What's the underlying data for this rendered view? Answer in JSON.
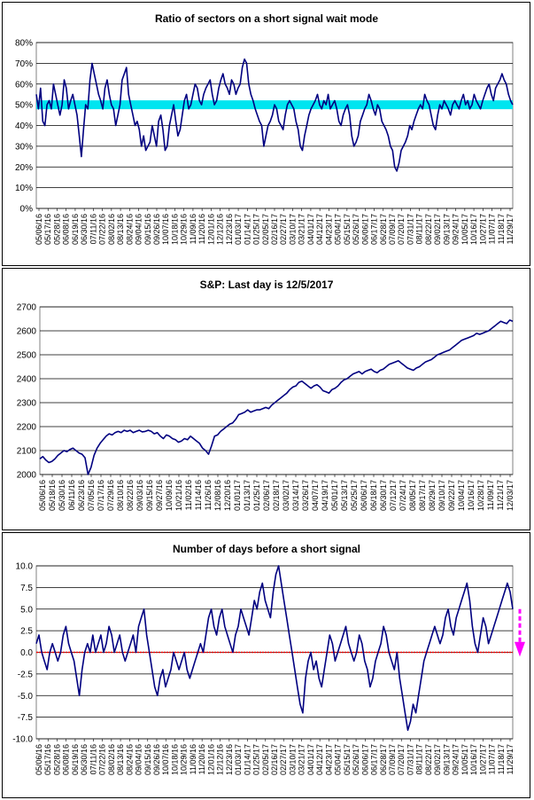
{
  "chart_data": [
    {
      "type": "line",
      "title": "Ratio of sectors on a short signal wait mode",
      "ylim": [
        0,
        80
      ],
      "yticks": [
        "0%",
        "10%",
        "20%",
        "30%",
        "40%",
        "50%",
        "60%",
        "70%",
        "80%"
      ],
      "grid": "horizontal",
      "highlight_band": {
        "center": 50,
        "color": "#00e5f0"
      },
      "line_color": "#000080",
      "xlabels": [
        "05/06/16",
        "05/17/16",
        "05/28/16",
        "06/08/16",
        "06/19/16",
        "06/30/16",
        "07/11/16",
        "07/22/16",
        "08/02/16",
        "08/13/16",
        "08/24/16",
        "09/04/16",
        "09/15/16",
        "09/26/16",
        "10/07/16",
        "10/18/16",
        "10/29/16",
        "11/09/16",
        "11/20/16",
        "12/01/16",
        "12/12/16",
        "12/23/16",
        "01/03/17",
        "01/14/17",
        "01/25/17",
        "02/05/17",
        "02/16/17",
        "02/27/17",
        "03/10/17",
        "03/21/17",
        "04/01/17",
        "04/12/17",
        "04/23/17",
        "05/04/17",
        "05/15/17",
        "05/26/17",
        "06/06/17",
        "06/17/17",
        "06/28/17",
        "07/09/17",
        "07/20/17",
        "07/31/17",
        "08/11/17",
        "08/22/17",
        "09/02/17",
        "09/13/17",
        "09/24/17",
        "10/05/17",
        "10/16/17",
        "10/27/17",
        "11/07/17",
        "11/18/17",
        "11/29/17"
      ],
      "series": [
        {
          "values": [
            55,
            48,
            58,
            42,
            40,
            50,
            52,
            48,
            60,
            55,
            50,
            45,
            50,
            62,
            58,
            48,
            52,
            55,
            50,
            45,
            35,
            25,
            38,
            50,
            48,
            62,
            70,
            65,
            60,
            55,
            52,
            48,
            58,
            62,
            55,
            50,
            48,
            40,
            45,
            50,
            62,
            65,
            68,
            55,
            50,
            45,
            40,
            42,
            38,
            30,
            35,
            28,
            30,
            32,
            40,
            35,
            30,
            42,
            45,
            38,
            28,
            30,
            40,
            45,
            50,
            42,
            35,
            38,
            45,
            52,
            55,
            48,
            50,
            55,
            60,
            58,
            52,
            50,
            55,
            58,
            60,
            62,
            55,
            50,
            52,
            58,
            62,
            65,
            60,
            58,
            55,
            62,
            60,
            55,
            58,
            60,
            68,
            72,
            70,
            60,
            55,
            52,
            48,
            45,
            42,
            40,
            30,
            35,
            40,
            42,
            45,
            50,
            48,
            42,
            40,
            38,
            45,
            50,
            52,
            50,
            48,
            42,
            38,
            30,
            28,
            35,
            40,
            45,
            48,
            50,
            52,
            55,
            50,
            48,
            52,
            50,
            55,
            48,
            50,
            52,
            48,
            42,
            40,
            45,
            48,
            50,
            45,
            35,
            30,
            32,
            35,
            42,
            45,
            48,
            50,
            55,
            52,
            48,
            45,
            50,
            48,
            42,
            40,
            38,
            35,
            30,
            28,
            20,
            18,
            22,
            28,
            30,
            32,
            35,
            40,
            38,
            42,
            45,
            48,
            50,
            48,
            55,
            52,
            50,
            45,
            40,
            38,
            45,
            50,
            48,
            52,
            50,
            48,
            45,
            50,
            52,
            50,
            48,
            52,
            55,
            50,
            52,
            48,
            50,
            55,
            52,
            50,
            48,
            52,
            55,
            58,
            60,
            55,
            52,
            58,
            60,
            62,
            65,
            62,
            60,
            55,
            52,
            50
          ]
        }
      ]
    },
    {
      "type": "line",
      "title": "S&P: Last day is 12/5/2017",
      "ylim": [
        2000,
        2700
      ],
      "yticks": [
        "2000",
        "2100",
        "2200",
        "2300",
        "2400",
        "2500",
        "2600",
        "2700"
      ],
      "grid": "horizontal",
      "line_color": "#000080",
      "xlabels": [
        "05/06/16",
        "05/18/16",
        "05/30/16",
        "06/11/16",
        "06/23/16",
        "07/05/16",
        "07/17/16",
        "07/29/16",
        "08/10/16",
        "08/22/16",
        "09/03/16",
        "09/15/16",
        "09/27/16",
        "10/09/16",
        "10/21/16",
        "11/02/16",
        "11/14/16",
        "11/26/16",
        "12/08/16",
        "12/20/16",
        "01/01/17",
        "01/13/17",
        "01/25/17",
        "02/06/17",
        "02/18/17",
        "03/02/17",
        "03/14/17",
        "03/26/17",
        "04/07/17",
        "04/19/17",
        "05/01/17",
        "05/13/17",
        "05/25/17",
        "06/06/17",
        "06/18/17",
        "06/30/17",
        "07/12/17",
        "07/24/17",
        "08/05/17",
        "08/17/17",
        "08/29/17",
        "09/10/17",
        "09/22/17",
        "10/04/17",
        "10/16/17",
        "10/28/17",
        "11/09/17",
        "11/21/17",
        "12/03/17"
      ],
      "series": [
        {
          "values": [
            2065,
            2075,
            2060,
            2050,
            2055,
            2065,
            2080,
            2090,
            2100,
            2095,
            2105,
            2110,
            2100,
            2090,
            2085,
            2070,
            2000,
            2030,
            2080,
            2110,
            2130,
            2145,
            2160,
            2170,
            2165,
            2175,
            2180,
            2175,
            2185,
            2180,
            2185,
            2175,
            2180,
            2185,
            2178,
            2180,
            2185,
            2180,
            2170,
            2175,
            2160,
            2150,
            2165,
            2160,
            2150,
            2145,
            2135,
            2140,
            2150,
            2145,
            2160,
            2150,
            2140,
            2130,
            2110,
            2100,
            2085,
            2120,
            2160,
            2165,
            2180,
            2190,
            2200,
            2210,
            2215,
            2230,
            2250,
            2255,
            2260,
            2270,
            2260,
            2265,
            2270,
            2270,
            2275,
            2280,
            2275,
            2290,
            2300,
            2310,
            2320,
            2330,
            2340,
            2355,
            2365,
            2370,
            2385,
            2390,
            2380,
            2370,
            2360,
            2370,
            2375,
            2365,
            2350,
            2345,
            2340,
            2355,
            2360,
            2370,
            2385,
            2395,
            2400,
            2410,
            2420,
            2425,
            2430,
            2420,
            2430,
            2435,
            2440,
            2430,
            2425,
            2435,
            2440,
            2450,
            2460,
            2465,
            2470,
            2475,
            2465,
            2455,
            2445,
            2440,
            2435,
            2445,
            2450,
            2460,
            2470,
            2475,
            2480,
            2490,
            2500,
            2505,
            2510,
            2515,
            2520,
            2530,
            2540,
            2550,
            2560,
            2565,
            2570,
            2575,
            2580,
            2590,
            2585,
            2590,
            2595,
            2600,
            2610,
            2620,
            2630,
            2640,
            2635,
            2630,
            2645,
            2640
          ]
        }
      ]
    },
    {
      "type": "line",
      "title": "Number of days before a short signal",
      "ylim": [
        -10,
        10
      ],
      "yticks": [
        "-10.0",
        "-7.5",
        "-5.0",
        "-2.5",
        "0.0",
        "2.5",
        "5.0",
        "7.5",
        "10.0"
      ],
      "grid": "horizontal",
      "zero_line_color": "#ff0000",
      "arrow_color": "#ff00ff",
      "line_color": "#000080",
      "xlabels": [
        "05/06/16",
        "05/17/16",
        "05/28/16",
        "06/08/16",
        "06/19/16",
        "06/30/16",
        "07/11/16",
        "07/22/16",
        "08/02/16",
        "08/13/16",
        "08/24/16",
        "09/04/16",
        "09/15/16",
        "09/26/16",
        "10/07/16",
        "10/18/16",
        "10/29/16",
        "11/09/16",
        "11/20/16",
        "12/01/16",
        "12/12/16",
        "12/23/16",
        "01/03/17",
        "01/14/17",
        "01/25/17",
        "02/05/17",
        "02/16/17",
        "02/27/17",
        "03/10/17",
        "03/21/17",
        "04/01/17",
        "04/12/17",
        "04/23/17",
        "05/04/17",
        "05/15/17",
        "05/26/17",
        "06/06/17",
        "06/17/17",
        "06/28/17",
        "07/09/17",
        "07/20/17",
        "07/31/17",
        "08/11/17",
        "08/22/17",
        "09/02/17",
        "09/13/17",
        "09/24/17",
        "10/05/17",
        "10/16/17",
        "10/27/17",
        "11/07/17",
        "11/18/17",
        "11/29/17"
      ],
      "series": [
        {
          "values": [
            1,
            2,
            0,
            -1,
            -2,
            0,
            1,
            0,
            -1,
            0,
            2,
            3,
            1,
            0,
            -1,
            -3,
            -5,
            -2,
            0,
            1,
            0,
            2,
            0,
            1,
            2,
            0,
            1,
            3,
            2,
            0,
            1,
            2,
            0,
            -1,
            0,
            1,
            2,
            0,
            3,
            4,
            5,
            2,
            0,
            -2,
            -4,
            -5,
            -3,
            -2,
            -4,
            -3,
            -2,
            0,
            -1,
            -2,
            -1,
            0,
            -2,
            -3,
            -2,
            -1,
            0,
            1,
            0,
            2,
            4,
            5,
            3,
            2,
            4,
            5,
            3,
            2,
            1,
            0,
            2,
            3,
            5,
            4,
            3,
            2,
            4,
            6,
            5,
            7,
            8,
            6,
            5,
            4,
            7,
            9,
            10,
            8,
            6,
            4,
            2,
            0,
            -2,
            -4,
            -6,
            -7,
            -3,
            -1,
            0,
            -2,
            -1,
            -3,
            -4,
            -2,
            0,
            2,
            1,
            -1,
            0,
            1,
            2,
            3,
            1,
            0,
            -1,
            0,
            2,
            1,
            -1,
            -2,
            -4,
            -3,
            -1,
            0,
            1,
            3,
            2,
            0,
            -1,
            -2,
            0,
            -3,
            -5,
            -7,
            -9,
            -8,
            -6,
            -7,
            -5,
            -3,
            -1,
            0,
            1,
            2,
            3,
            2,
            1,
            2,
            4,
            5,
            3,
            2,
            4,
            5,
            6,
            7,
            8,
            6,
            3,
            1,
            0,
            2,
            4,
            3,
            1,
            2,
            3,
            4,
            5,
            6,
            7,
            8,
            7,
            5
          ]
        }
      ]
    }
  ]
}
